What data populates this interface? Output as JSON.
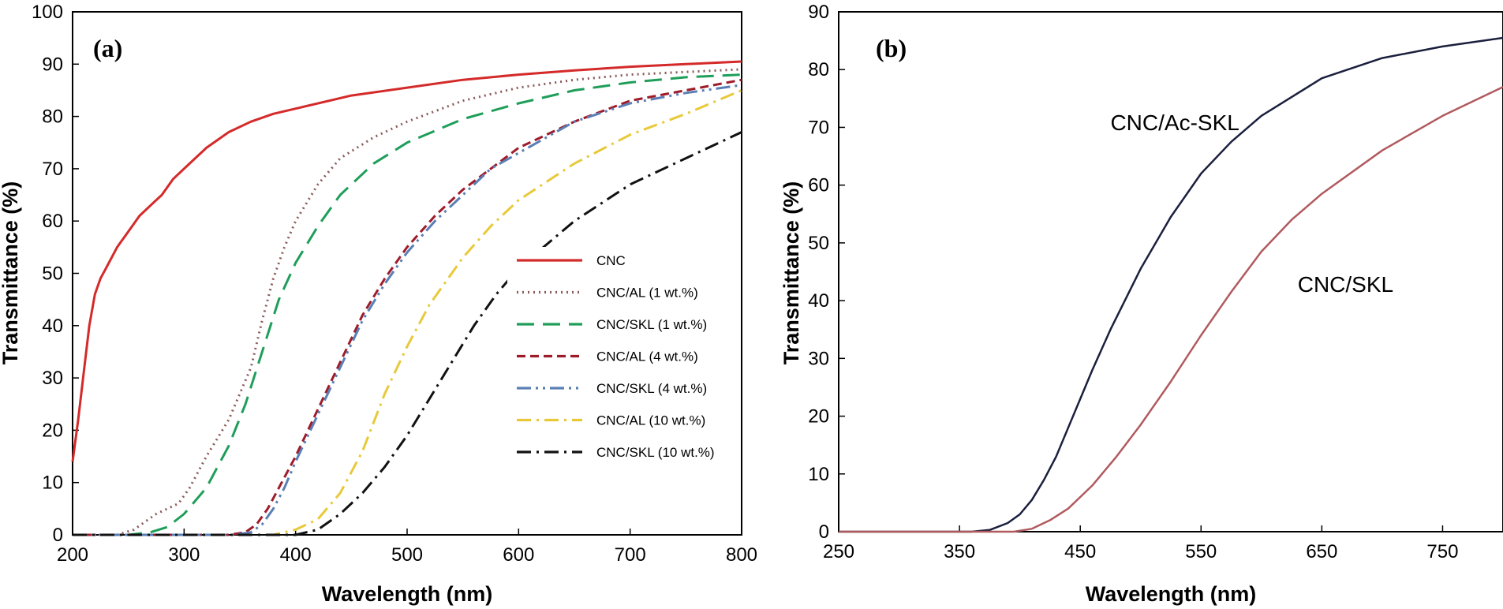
{
  "chart_data": [
    {
      "type": "line",
      "panel_label": "(a)",
      "xlabel": "Wavelength (nm)",
      "ylabel": "Transmittance (%)",
      "xlim": [
        200,
        800
      ],
      "ylim": [
        0,
        100
      ],
      "xticks": [
        200,
        300,
        400,
        500,
        600,
        700,
        800
      ],
      "yticks": [
        0,
        10,
        20,
        30,
        40,
        50,
        60,
        70,
        80,
        90,
        100
      ],
      "grid": false,
      "legend_position": "bottom-right",
      "series": [
        {
          "name": "CNC",
          "color": "#d42a2a",
          "dash": "solid",
          "x": [
            200,
            205,
            210,
            215,
            220,
            225,
            230,
            240,
            250,
            260,
            270,
            280,
            290,
            300,
            320,
            340,
            360,
            380,
            400,
            450,
            500,
            550,
            600,
            650,
            700,
            750,
            800
          ],
          "y": [
            14,
            22,
            31,
            40,
            46,
            49,
            51,
            55,
            58,
            61,
            63,
            65,
            68,
            70,
            74,
            77,
            79,
            80.5,
            81.5,
            84,
            85.5,
            87,
            88,
            88.8,
            89.5,
            90,
            90.5
          ]
        },
        {
          "name": "CNC/AL (1 wt.%)",
          "color": "#8b5a5a",
          "dash": "dot",
          "x": [
            200,
            240,
            255,
            265,
            275,
            285,
            295,
            305,
            320,
            340,
            350,
            360,
            370,
            380,
            390,
            400,
            420,
            440,
            470,
            500,
            550,
            600,
            650,
            700,
            750,
            800
          ],
          "y": [
            0,
            0,
            1,
            2.5,
            4,
            5,
            6,
            9,
            15,
            22,
            27,
            32,
            41,
            49,
            55,
            60,
            67,
            72,
            76,
            79,
            83,
            85.5,
            87,
            88,
            88.5,
            89
          ]
        },
        {
          "name": "CNC/SKL (1 wt.%)",
          "color": "#1f9e5a",
          "dash": "longdash",
          "x": [
            200,
            250,
            270,
            285,
            300,
            320,
            340,
            355,
            370,
            385,
            400,
            420,
            440,
            470,
            500,
            550,
            600,
            650,
            700,
            750,
            800
          ],
          "y": [
            0,
            0,
            0.5,
            1.5,
            4,
            9,
            17,
            25,
            35,
            45,
            52,
            59,
            65,
            71,
            75,
            79.5,
            82.5,
            85,
            86.5,
            87.5,
            88
          ]
        },
        {
          "name": "CNC/AL (4 wt.%)",
          "color": "#9e1c2a",
          "dash": "dash",
          "x": [
            200,
            340,
            355,
            365,
            375,
            385,
            400,
            420,
            440,
            460,
            480,
            500,
            525,
            550,
            575,
            600,
            650,
            700,
            750,
            800
          ],
          "y": [
            0,
            0,
            0.5,
            2,
            5,
            9,
            15,
            24,
            33,
            42,
            49,
            55,
            61,
            66,
            70,
            74,
            79,
            83,
            85,
            87
          ]
        },
        {
          "name": "CNC/SKL (4 wt.%)",
          "color": "#5a7fb5",
          "dash": "dashdotdot",
          "x": [
            200,
            345,
            360,
            370,
            380,
            390,
            400,
            420,
            440,
            460,
            480,
            500,
            525,
            550,
            575,
            600,
            650,
            700,
            750,
            800
          ],
          "y": [
            0,
            0,
            0.5,
            2,
            5,
            9,
            14,
            23,
            32,
            41,
            48,
            54,
            60,
            65,
            70,
            73,
            79,
            82.5,
            84.5,
            86
          ]
        },
        {
          "name": "CNC/AL (10 wt.%)",
          "color": "#e8c93a",
          "dash": "dashdot",
          "x": [
            200,
            380,
            400,
            420,
            440,
            460,
            480,
            500,
            520,
            550,
            575,
            600,
            650,
            700,
            750,
            800
          ],
          "y": [
            0,
            0,
            1,
            3,
            8,
            16,
            27,
            36,
            44,
            53,
            59,
            64,
            71,
            76.5,
            80.5,
            85
          ]
        },
        {
          "name": "CNC/SKL (10 wt.%)",
          "color": "#111111",
          "dash": "dashdot",
          "x": [
            200,
            400,
            420,
            440,
            460,
            480,
            500,
            520,
            540,
            560,
            580,
            600,
            650,
            700,
            750,
            800
          ],
          "y": [
            0,
            0,
            1,
            4,
            8,
            13,
            19,
            26,
            33,
            40,
            46,
            51,
            60,
            67,
            72,
            77
          ]
        }
      ]
    },
    {
      "type": "line",
      "panel_label": "(b)",
      "xlabel": "Wavelength (nm)",
      "ylabel": "Transmittance (%)",
      "xlim": [
        250,
        800
      ],
      "ylim": [
        0,
        90
      ],
      "xticks": [
        250,
        350,
        450,
        550,
        650,
        750
      ],
      "yticks": [
        0,
        10,
        20,
        30,
        40,
        50,
        60,
        70,
        80,
        90
      ],
      "grid": false,
      "series": [
        {
          "name": "CNC/Ac-SKL",
          "color": "#1a1f3d",
          "dash": "solid",
          "x": [
            250,
            360,
            375,
            390,
            400,
            410,
            420,
            430,
            440,
            450,
            460,
            475,
            500,
            525,
            550,
            575,
            600,
            650,
            700,
            750,
            800
          ],
          "y": [
            0,
            0,
            0.3,
            1.5,
            3,
            5.5,
            9,
            13,
            18,
            23,
            28,
            35,
            45.5,
            54.5,
            62,
            67.5,
            72,
            78.5,
            82,
            84,
            85.5
          ]
        },
        {
          "name": "CNC/SKL",
          "color": "#b05a5f",
          "dash": "solid",
          "x": [
            250,
            395,
            410,
            425,
            440,
            460,
            480,
            500,
            525,
            550,
            575,
            600,
            625,
            650,
            700,
            750,
            800
          ],
          "y": [
            0,
            0,
            0.5,
            2,
            4,
            8,
            13,
            18.5,
            26,
            34,
            41.5,
            48.5,
            54,
            58.5,
            66,
            72,
            77
          ]
        }
      ],
      "annotations": [
        {
          "text": "CNC/Ac-SKL",
          "x": 475,
          "y": 69.5
        },
        {
          "text": "CNC/SKL",
          "x": 630,
          "y": 41.5
        }
      ]
    }
  ]
}
